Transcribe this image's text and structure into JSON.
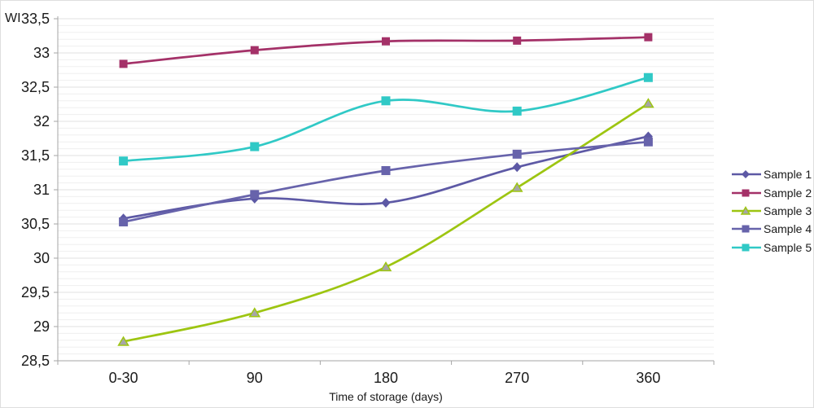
{
  "chart_data": {
    "type": "line",
    "title": "",
    "ylabel": "WI",
    "xlabel": "Time of storage (days)",
    "categories": [
      "0-30",
      "90",
      "180",
      "270",
      "360"
    ],
    "ylim": [
      28.5,
      33.5
    ],
    "y_major_step": 0.5,
    "y_minor_step": 0.1,
    "y_tick_labels": [
      "33,5",
      "33",
      "32,5",
      "32",
      "31,5",
      "31",
      "30,5",
      "30",
      "29,5",
      "29",
      "28,5"
    ],
    "grid": "horizontal minor+major, light gray",
    "legend_position": "right",
    "line_style": "smoothed",
    "axis_color": "#a6a6a6",
    "minor_grid_color": "#efefef",
    "major_grid_color": "#e2e2e2",
    "text_color": "#1a1a1a",
    "series": [
      {
        "name": "Sample 1",
        "color": "#5d59a5",
        "marker": "diamond",
        "marker_fill": "#5d59a5",
        "values": [
          30.58,
          30.87,
          30.81,
          31.33,
          31.78
        ]
      },
      {
        "name": "Sample 2",
        "color": "#a43168",
        "marker": "square",
        "marker_fill": "#a43168",
        "marker_size": 10,
        "values": [
          32.84,
          33.04,
          33.17,
          33.18,
          33.23
        ]
      },
      {
        "name": "Sample 3",
        "color": "#9dc511",
        "marker": "triangle",
        "marker_fill": "#a6a6a6",
        "values": [
          28.78,
          29.2,
          29.87,
          31.03,
          32.26
        ]
      },
      {
        "name": "Sample 4",
        "color": "#6763ab",
        "marker": "square",
        "marker_fill": "#6763ab",
        "marker_size": 11,
        "values": [
          30.53,
          30.93,
          31.28,
          31.52,
          31.7
        ]
      },
      {
        "name": "Sample 5",
        "color": "#30c9c6",
        "marker": "square",
        "marker_fill": "#30c9c6",
        "marker_size": 11,
        "values": [
          31.42,
          31.63,
          32.3,
          32.15,
          32.64
        ]
      }
    ]
  }
}
